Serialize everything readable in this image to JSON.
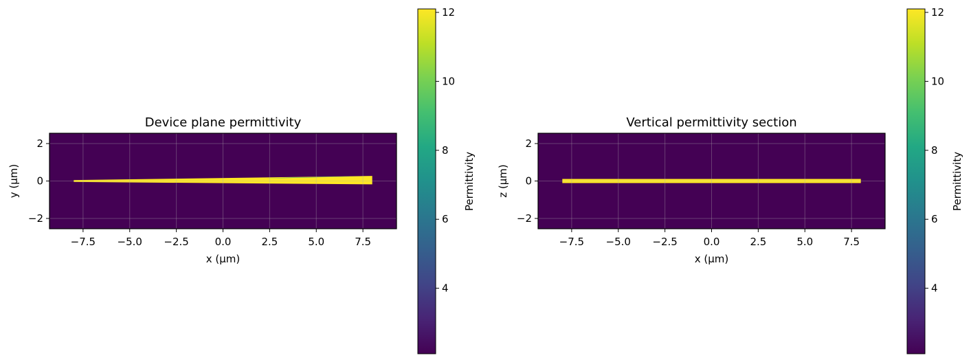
{
  "chart_data": [
    {
      "type": "heatmap",
      "title": "Device plane permittivity",
      "xlabel": "x (µm)",
      "ylabel": "y (µm)",
      "xlim": [
        -9.3,
        9.3
      ],
      "ylim": [
        -2.55,
        2.55
      ],
      "xticks": [
        -7.5,
        -5.0,
        -2.5,
        0.0,
        2.5,
        5.0,
        7.5
      ],
      "xtick_labels": [
        "−7.5",
        "−5.0",
        "−2.5",
        "0.0",
        "2.5",
        "5.0",
        "7.5"
      ],
      "yticks": [
        -2,
        0,
        2
      ],
      "ytick_labels": [
        "−2",
        "0",
        "2"
      ],
      "grid": true,
      "background_value": 2.1,
      "shapes": [
        {
          "name": "taper",
          "value": 12.1,
          "points": [
            [
              -8.0,
              -0.05
            ],
            [
              -8.0,
              0.05
            ],
            [
              8.0,
              0.27
            ],
            [
              8.0,
              -0.18
            ]
          ]
        },
        {
          "name": "taper-edge",
          "value": 9.0,
          "points": [
            [
              2.0,
              0.12
            ],
            [
              8.0,
              0.27
            ],
            [
              3.5,
              0.18
            ]
          ]
        }
      ],
      "colorbar": {
        "label": "Permittivity",
        "range": [
          2.1,
          12.1
        ],
        "ticks": [
          4,
          6,
          8,
          10,
          12
        ],
        "tick_labels": [
          "4",
          "6",
          "8",
          "10",
          "12"
        ]
      }
    },
    {
      "type": "heatmap",
      "title": "Vertical permittivity section",
      "xlabel": "x (µm)",
      "ylabel": "z (µm)",
      "xlim": [
        -9.3,
        9.3
      ],
      "ylim": [
        -2.55,
        2.55
      ],
      "xticks": [
        -7.5,
        -5.0,
        -2.5,
        0.0,
        2.5,
        5.0,
        7.5
      ],
      "xtick_labels": [
        "−7.5",
        "−5.0",
        "−2.5",
        "0.0",
        "2.5",
        "5.0",
        "7.5"
      ],
      "yticks": [
        -2,
        0,
        2
      ],
      "ytick_labels": [
        "−2",
        "0",
        "2"
      ],
      "grid": true,
      "background_value": 2.1,
      "shapes": [
        {
          "name": "slab",
          "value": 12.1,
          "points": [
            [
              -8.0,
              -0.11
            ],
            [
              -8.0,
              0.11
            ],
            [
              8.0,
              0.11
            ],
            [
              8.0,
              -0.11
            ]
          ]
        }
      ],
      "colorbar": {
        "label": "Permittivity",
        "range": [
          2.1,
          12.1
        ],
        "ticks": [
          4,
          6,
          8,
          10,
          12
        ],
        "tick_labels": [
          "4",
          "6",
          "8",
          "10",
          "12"
        ]
      }
    }
  ]
}
